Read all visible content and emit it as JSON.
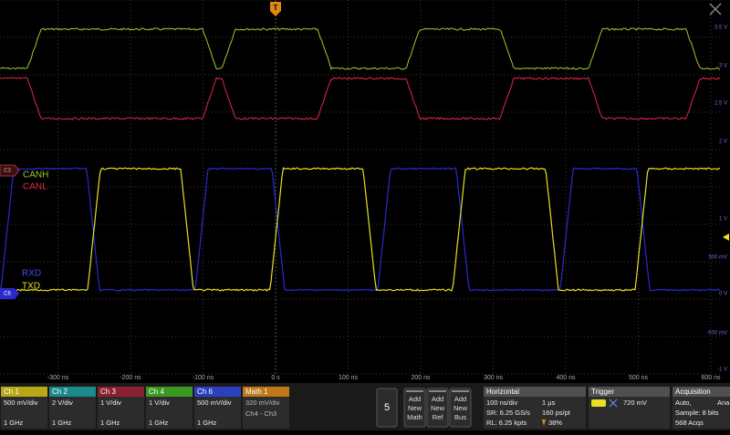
{
  "time_axis": {
    "labels": [
      "-300 ns",
      "-200 ns",
      "-100 ns",
      "0 s",
      "100 ns",
      "200 ns",
      "300 ns",
      "400 ns",
      "500 ns",
      "600 ns"
    ]
  },
  "voltage_axis": {
    "labels": [
      "3.5 V",
      "3 V",
      "2.5 V",
      "2 V",
      "1 V",
      "500 mV",
      "0 V",
      "-500 mV",
      "-1 V"
    ]
  },
  "markers": {
    "c3": "C3",
    "c6": "C6",
    "trigger": "T"
  },
  "waveforms": [
    {
      "label": "CANH"
    },
    {
      "label": "CANL"
    },
    {
      "label": "RXD"
    },
    {
      "label": "TXD"
    }
  ],
  "channels": [
    {
      "name": "Ch 1",
      "scale": "500 mV/div",
      "bandwidth": "1 GHz"
    },
    {
      "name": "Ch 2",
      "scale": "2 V/div",
      "bandwidth": "1 GHz"
    },
    {
      "name": "Ch 3",
      "scale": "1 V/div",
      "bandwidth": "1 GHz"
    },
    {
      "name": "Ch 4",
      "scale": "1 V/div",
      "bandwidth": "1 GHz"
    },
    {
      "name": "Ch 6",
      "scale": "500 mV/div",
      "bandwidth": "1 GHz"
    }
  ],
  "math": {
    "name": "Math 1",
    "scale": "320 mV/div",
    "expression": "Ch4 - Ch3"
  },
  "zoom_button": "5",
  "add_buttons": [
    [
      "Add",
      "New",
      "Math"
    ],
    [
      "Add",
      "New",
      "Ref"
    ],
    [
      "Add",
      "New",
      "Bus"
    ]
  ],
  "horizontal": {
    "title": "Horizontal",
    "scale": "100 ns/div",
    "record": "1 µs",
    "sample_rate": "SR: 6.25 GS/s",
    "resolution": "160 ps/pt",
    "record_length": "RL: 6.25 kpts",
    "position": "38%"
  },
  "trigger": {
    "title": "Trigger",
    "level": "720 mV"
  },
  "acquisition": {
    "title": "Acquisition",
    "mode": "Auto,",
    "mode_cut": "Ana",
    "sample": "Sample: 8 bits",
    "count": "568 Acqs"
  }
}
